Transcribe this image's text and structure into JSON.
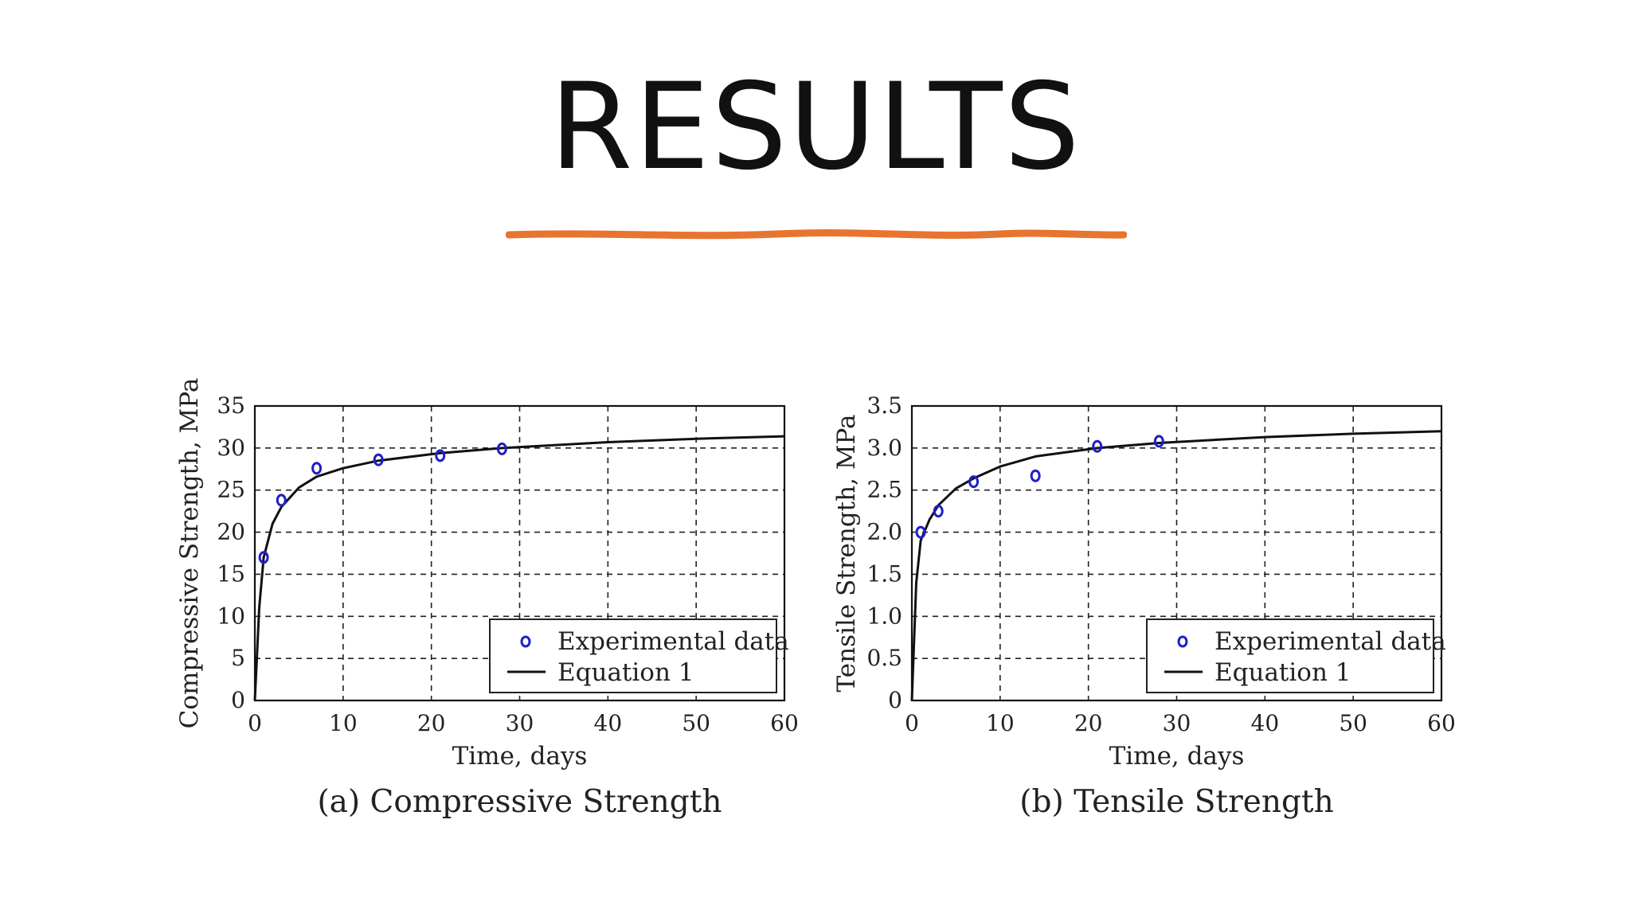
{
  "slide": {
    "title": "RESULTS",
    "underline_color": "#e8742f"
  },
  "chart_data": [
    {
      "type": "scatter",
      "caption": "(a) Compressive Strength",
      "xlabel": "Time, days",
      "ylabel": "Compressive Strength, MPa",
      "xlim": [
        0,
        60
      ],
      "ylim": [
        0,
        35
      ],
      "xticks": [
        "0",
        "10",
        "20",
        "30",
        "40",
        "50",
        "60"
      ],
      "yticks": [
        "0",
        "5",
        "10",
        "15",
        "20",
        "25",
        "30",
        "35"
      ],
      "grid": true,
      "legend_position": "bottom-right",
      "series": [
        {
          "name": "Experimental data",
          "kind": "markers",
          "color": "#1f1fc8",
          "x": [
            1,
            3,
            7,
            14,
            21,
            28
          ],
          "y": [
            17,
            23.8,
            27.6,
            28.6,
            29.1,
            29.9
          ]
        },
        {
          "name": "Equation 1",
          "kind": "line",
          "color": "#111111",
          "x": [
            0,
            0.5,
            1,
            2,
            3,
            5,
            7,
            10,
            14,
            21,
            28,
            40,
            50,
            60
          ],
          "y": [
            0,
            11,
            17,
            21,
            23,
            25.3,
            26.6,
            27.6,
            28.5,
            29.4,
            30,
            30.7,
            31.1,
            31.4
          ]
        }
      ]
    },
    {
      "type": "scatter",
      "caption": "(b) Tensile Strength",
      "xlabel": "Time, days",
      "ylabel": "Tensile Strength, MPa",
      "xlim": [
        0,
        60
      ],
      "ylim": [
        0,
        3.5
      ],
      "xticks": [
        "0",
        "10",
        "20",
        "30",
        "40",
        "50",
        "60"
      ],
      "yticks": [
        "0",
        "0.5",
        "1.0",
        "1.5",
        "2.0",
        "2.5",
        "3.0",
        "3.5"
      ],
      "grid": true,
      "legend_position": "bottom-right",
      "series": [
        {
          "name": "Experimental data",
          "kind": "markers",
          "color": "#1f1fc8",
          "x": [
            1,
            3,
            7,
            14,
            21,
            28
          ],
          "y": [
            2.0,
            2.25,
            2.6,
            2.67,
            3.02,
            3.08
          ]
        },
        {
          "name": "Equation 1",
          "kind": "line",
          "color": "#111111",
          "x": [
            0,
            0.5,
            1,
            2,
            3,
            5,
            7,
            10,
            14,
            21,
            28,
            40,
            50,
            60
          ],
          "y": [
            0,
            1.4,
            1.9,
            2.15,
            2.32,
            2.52,
            2.64,
            2.78,
            2.9,
            3.0,
            3.06,
            3.13,
            3.17,
            3.2
          ]
        }
      ]
    }
  ]
}
